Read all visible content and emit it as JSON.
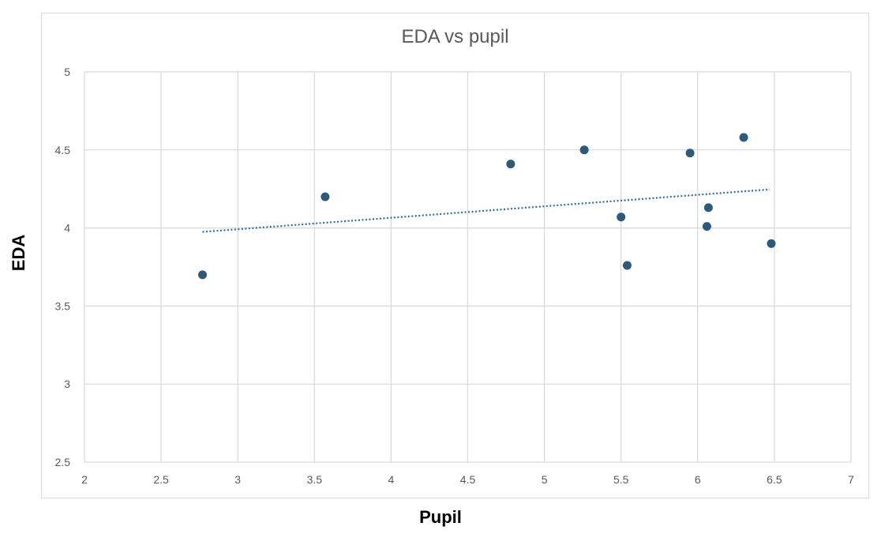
{
  "chart_data": {
    "type": "scatter",
    "title": "EDA vs pupil",
    "xlabel": "Pupil",
    "ylabel": "EDA",
    "xlim": [
      2,
      7
    ],
    "ylim": [
      2.5,
      5
    ],
    "x_ticks": [
      "2",
      "2.5",
      "3",
      "3.5",
      "4",
      "4.5",
      "5",
      "5.5",
      "6",
      "6.5",
      "7"
    ],
    "y_ticks": [
      "2.5",
      "3",
      "3.5",
      "4",
      "4.5",
      "5"
    ],
    "grid": true,
    "legend": "none",
    "marker_color": "#2e5a7a",
    "trendline": {
      "type": "linear",
      "style": "dotted",
      "color": "#2e6f96",
      "x_start": 2.77,
      "y_start": 3.975,
      "x_end": 6.47,
      "y_end": 4.247
    },
    "series": [
      {
        "x": [
          2.77,
          3.57,
          4.78,
          5.26,
          5.5,
          5.54,
          5.95,
          6.06,
          6.07,
          6.3,
          6.48
        ],
        "y": [
          3.7,
          4.2,
          4.41,
          4.5,
          4.07,
          3.76,
          4.48,
          4.01,
          4.13,
          4.58,
          3.9
        ]
      }
    ]
  }
}
